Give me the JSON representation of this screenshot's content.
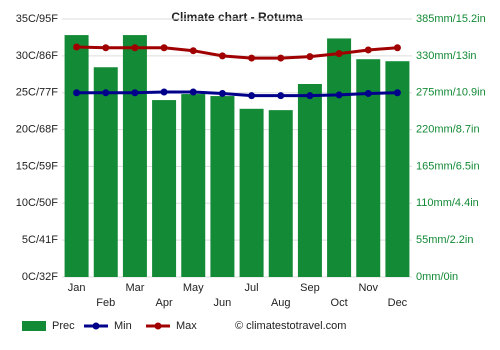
{
  "chart_data": {
    "type": "bar",
    "title": "Climate chart - Rotuma",
    "categories": [
      "Jan",
      "Feb",
      "Mar",
      "Apr",
      "May",
      "Jun",
      "Jul",
      "Aug",
      "Sep",
      "Oct",
      "Nov",
      "Dec"
    ],
    "series": [
      {
        "name": "Prec",
        "type": "bar",
        "axis": "y2",
        "color": "#138a36",
        "values": [
          361,
          313,
          361,
          264,
          273,
          270,
          251,
          249,
          288,
          356,
          325,
          322
        ]
      },
      {
        "name": "Min",
        "type": "line",
        "color": "#00008b",
        "values": [
          25.0,
          25.0,
          25.0,
          25.1,
          25.1,
          24.9,
          24.6,
          24.6,
          24.6,
          24.7,
          24.9,
          25.0
        ]
      },
      {
        "name": "Max",
        "type": "line",
        "color": "#a00000",
        "values": [
          31.2,
          31.1,
          31.1,
          31.1,
          30.7,
          30.0,
          29.7,
          29.7,
          29.9,
          30.3,
          30.8,
          31.1
        ]
      }
    ],
    "ylim": [
      0,
      35
    ],
    "yticks": [
      {
        "value": 0,
        "label": "0C/32F"
      },
      {
        "value": 5,
        "label": "5C/41F"
      },
      {
        "value": 10,
        "label": "10C/50F"
      },
      {
        "value": 15,
        "label": "15C/59F"
      },
      {
        "value": 20,
        "label": "20C/68F"
      },
      {
        "value": 25,
        "label": "25C/77F"
      },
      {
        "value": 30,
        "label": "30C/86F"
      },
      {
        "value": 35,
        "label": "35C/95F"
      }
    ],
    "y2lim": [
      0,
      385
    ],
    "y2ticks": [
      {
        "value": 0,
        "label": "0mm/0in"
      },
      {
        "value": 55,
        "label": "55mm/2.2in"
      },
      {
        "value": 110,
        "label": "110mm/4.4in"
      },
      {
        "value": 165,
        "label": "165mm/6.5in"
      },
      {
        "value": 220,
        "label": "220mm/8.7in"
      },
      {
        "value": 275,
        "label": "275mm/10.9in"
      },
      {
        "value": 330,
        "label": "330mm/13in"
      },
      {
        "value": 385,
        "label": "385mm/15.2in"
      }
    ],
    "grid": true,
    "legend": "bottom",
    "watermark": "© climatestotravel.com"
  }
}
